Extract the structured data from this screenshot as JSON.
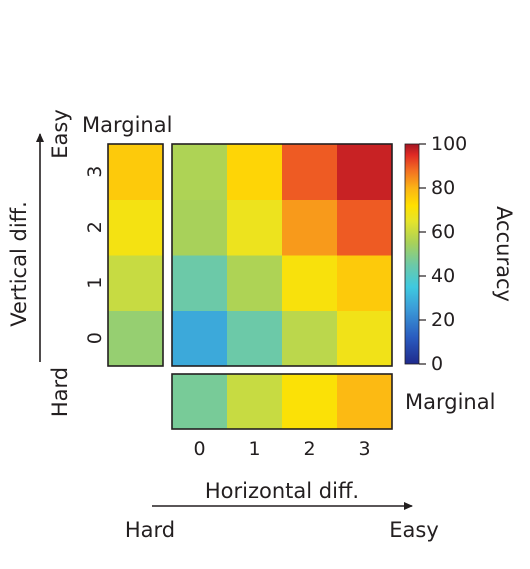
{
  "chart_data": {
    "type": "heatmap",
    "title": "",
    "xlabel": "Horizontal diff.",
    "ylabel": "Vertical diff.",
    "x_categories": [
      "0",
      "1",
      "2",
      "3"
    ],
    "y_categories": [
      "0",
      "1",
      "2",
      "3"
    ],
    "x_direction": {
      "low": "Hard",
      "high": "Easy"
    },
    "y_direction": {
      "low": "Hard",
      "high": "Easy"
    },
    "values": [
      [
        28,
        45,
        58,
        68
      ],
      [
        45,
        56,
        70,
        76
      ],
      [
        55,
        67,
        83,
        90
      ],
      [
        56,
        74,
        90,
        97
      ]
    ],
    "values_note_rows": "rows indexed by vertical diff 0..3, columns by horizontal diff 0..3",
    "marginal_label": "Marginal",
    "marginal_vertical": [
      52,
      60,
      69,
      76
    ],
    "marginal_horizontal": [
      47,
      60,
      71,
      79
    ],
    "colorbar": {
      "label": "Accuracy",
      "range": [
        0,
        100
      ],
      "ticks": [
        "0",
        "20",
        "40",
        "60",
        "80",
        "100"
      ]
    }
  }
}
